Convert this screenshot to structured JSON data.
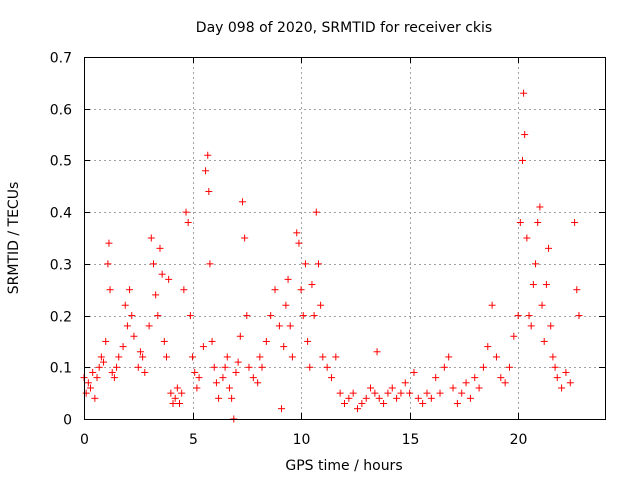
{
  "chart_data": {
    "type": "scatter",
    "title": "Day 098 of 2020, SRMTID for receiver ckis",
    "xlabel": "GPS time / hours",
    "ylabel": "SRMTID / TECUs",
    "xlim": [
      0,
      24
    ],
    "ylim": [
      0,
      0.7
    ],
    "xticks": [
      0,
      5,
      10,
      15,
      20
    ],
    "xtick_labels": [
      "0",
      "5",
      "10",
      "15",
      "20"
    ],
    "yticks": [
      0,
      0.1,
      0.2,
      0.3,
      0.4,
      0.5,
      0.6,
      0.7
    ],
    "ytick_labels": [
      "0",
      "0.1",
      "0.2",
      "0.3",
      "0.4",
      "0.5",
      "0.6",
      "0.7"
    ],
    "grid": true,
    "marker": "+",
    "color": "#ff0000",
    "series": [
      {
        "name": "SRMTID",
        "points": [
          [
            0.0,
            0.08
          ],
          [
            0.1,
            0.05
          ],
          [
            0.2,
            0.07
          ],
          [
            0.3,
            0.06
          ],
          [
            0.4,
            0.09
          ],
          [
            0.5,
            0.04
          ],
          [
            0.6,
            0.08
          ],
          [
            0.7,
            0.1
          ],
          [
            0.8,
            0.12
          ],
          [
            0.9,
            0.11
          ],
          [
            1.0,
            0.15
          ],
          [
            1.1,
            0.3
          ],
          [
            1.15,
            0.34
          ],
          [
            1.2,
            0.25
          ],
          [
            1.3,
            0.09
          ],
          [
            1.4,
            0.08
          ],
          [
            1.5,
            0.1
          ],
          [
            1.6,
            0.12
          ],
          [
            1.8,
            0.14
          ],
          [
            1.9,
            0.22
          ],
          [
            2.0,
            0.18
          ],
          [
            2.1,
            0.25
          ],
          [
            2.2,
            0.2
          ],
          [
            2.3,
            0.16
          ],
          [
            2.5,
            0.1
          ],
          [
            2.6,
            0.13
          ],
          [
            2.7,
            0.12
          ],
          [
            2.8,
            0.09
          ],
          [
            3.0,
            0.18
          ],
          [
            3.1,
            0.35
          ],
          [
            3.2,
            0.3
          ],
          [
            3.3,
            0.24
          ],
          [
            3.4,
            0.2
          ],
          [
            3.5,
            0.33
          ],
          [
            3.6,
            0.28
          ],
          [
            3.7,
            0.15
          ],
          [
            3.8,
            0.12
          ],
          [
            3.9,
            0.27
          ],
          [
            4.0,
            0.05
          ],
          [
            4.1,
            0.03
          ],
          [
            4.2,
            0.04
          ],
          [
            4.3,
            0.06
          ],
          [
            4.4,
            0.03
          ],
          [
            4.5,
            0.05
          ],
          [
            4.6,
            0.25
          ],
          [
            4.7,
            0.4
          ],
          [
            4.8,
            0.38
          ],
          [
            4.9,
            0.2
          ],
          [
            5.0,
            0.12
          ],
          [
            5.1,
            0.09
          ],
          [
            5.2,
            0.06
          ],
          [
            5.3,
            0.08
          ],
          [
            5.5,
            0.14
          ],
          [
            5.6,
            0.48
          ],
          [
            5.7,
            0.51
          ],
          [
            5.75,
            0.44
          ],
          [
            5.8,
            0.3
          ],
          [
            5.9,
            0.15
          ],
          [
            6.0,
            0.1
          ],
          [
            6.1,
            0.07
          ],
          [
            6.2,
            0.04
          ],
          [
            6.4,
            0.08
          ],
          [
            6.5,
            0.1
          ],
          [
            6.6,
            0.12
          ],
          [
            6.7,
            0.06
          ],
          [
            6.8,
            0.04
          ],
          [
            6.9,
            0.0
          ],
          [
            7.0,
            0.09
          ],
          [
            7.1,
            0.11
          ],
          [
            7.2,
            0.16
          ],
          [
            7.3,
            0.42
          ],
          [
            7.4,
            0.35
          ],
          [
            7.5,
            0.2
          ],
          [
            7.6,
            0.1
          ],
          [
            7.8,
            0.08
          ],
          [
            8.0,
            0.07
          ],
          [
            8.1,
            0.12
          ],
          [
            8.2,
            0.1
          ],
          [
            8.4,
            0.15
          ],
          [
            8.6,
            0.2
          ],
          [
            8.8,
            0.25
          ],
          [
            9.0,
            0.18
          ],
          [
            9.1,
            0.02
          ],
          [
            9.2,
            0.14
          ],
          [
            9.3,
            0.22
          ],
          [
            9.4,
            0.27
          ],
          [
            9.5,
            0.18
          ],
          [
            9.6,
            0.12
          ],
          [
            9.8,
            0.36
          ],
          [
            9.9,
            0.34
          ],
          [
            10.0,
            0.25
          ],
          [
            10.1,
            0.2
          ],
          [
            10.2,
            0.3
          ],
          [
            10.3,
            0.15
          ],
          [
            10.4,
            0.1
          ],
          [
            10.5,
            0.26
          ],
          [
            10.6,
            0.2
          ],
          [
            10.7,
            0.4
          ],
          [
            10.8,
            0.3
          ],
          [
            10.9,
            0.22
          ],
          [
            11.0,
            0.12
          ],
          [
            11.2,
            0.1
          ],
          [
            11.4,
            0.08
          ],
          [
            11.6,
            0.12
          ],
          [
            11.8,
            0.05
          ],
          [
            12.0,
            0.03
          ],
          [
            12.2,
            0.04
          ],
          [
            12.4,
            0.05
          ],
          [
            12.6,
            0.02
          ],
          [
            12.8,
            0.03
          ],
          [
            13.0,
            0.04
          ],
          [
            13.2,
            0.06
          ],
          [
            13.4,
            0.05
          ],
          [
            13.5,
            0.13
          ],
          [
            13.6,
            0.04
          ],
          [
            13.8,
            0.03
          ],
          [
            14.0,
            0.05
          ],
          [
            14.2,
            0.06
          ],
          [
            14.4,
            0.04
          ],
          [
            14.6,
            0.05
          ],
          [
            14.8,
            0.07
          ],
          [
            15.0,
            0.05
          ],
          [
            15.2,
            0.09
          ],
          [
            15.4,
            0.04
          ],
          [
            15.6,
            0.03
          ],
          [
            15.8,
            0.05
          ],
          [
            16.0,
            0.04
          ],
          [
            16.2,
            0.08
          ],
          [
            16.4,
            0.05
          ],
          [
            16.6,
            0.1
          ],
          [
            16.8,
            0.12
          ],
          [
            17.0,
            0.06
          ],
          [
            17.2,
            0.03
          ],
          [
            17.4,
            0.05
          ],
          [
            17.6,
            0.07
          ],
          [
            17.8,
            0.04
          ],
          [
            18.0,
            0.08
          ],
          [
            18.2,
            0.06
          ],
          [
            18.4,
            0.1
          ],
          [
            18.6,
            0.14
          ],
          [
            18.8,
            0.22
          ],
          [
            19.0,
            0.12
          ],
          [
            19.2,
            0.08
          ],
          [
            19.4,
            0.07
          ],
          [
            19.6,
            0.1
          ],
          [
            19.8,
            0.16
          ],
          [
            20.0,
            0.2
          ],
          [
            20.1,
            0.38
          ],
          [
            20.2,
            0.5
          ],
          [
            20.25,
            0.63
          ],
          [
            20.3,
            0.55
          ],
          [
            20.4,
            0.35
          ],
          [
            20.5,
            0.2
          ],
          [
            20.6,
            0.18
          ],
          [
            20.7,
            0.26
          ],
          [
            20.8,
            0.3
          ],
          [
            20.9,
            0.38
          ],
          [
            21.0,
            0.41
          ],
          [
            21.1,
            0.22
          ],
          [
            21.2,
            0.15
          ],
          [
            21.3,
            0.26
          ],
          [
            21.4,
            0.33
          ],
          [
            21.5,
            0.18
          ],
          [
            21.6,
            0.12
          ],
          [
            21.7,
            0.1
          ],
          [
            21.8,
            0.08
          ],
          [
            22.0,
            0.06
          ],
          [
            22.2,
            0.09
          ],
          [
            22.4,
            0.07
          ],
          [
            22.6,
            0.38
          ],
          [
            22.7,
            0.25
          ],
          [
            22.8,
            0.2
          ]
        ]
      }
    ]
  }
}
